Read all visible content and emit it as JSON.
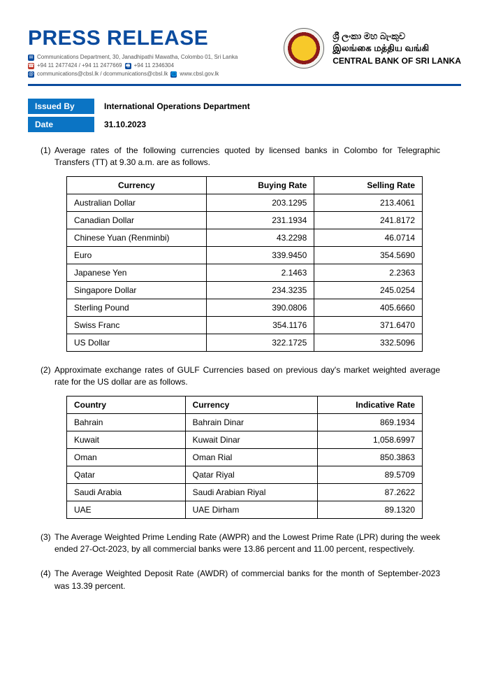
{
  "header": {
    "title": "PRESS RELEASE",
    "address": "Communications Department, 30, Janadhipathi Mawatha, Colombo 01, Sri Lanka",
    "phone": "+94 11 2477424 / +94 11 2477669",
    "fax": "+94 11 2346304",
    "email": "communications@cbsl.lk / dcommunications@cbsl.lk",
    "web": "www.cbsl.gov.lk",
    "bank_si": "ශ්‍රී ලංකා මහ බැංකුව",
    "bank_ta": "இலங்கை மத்திய வங்கி",
    "bank_en": "CENTRAL BANK OF SRI LANKA"
  },
  "meta": {
    "issued_by_label": "Issued By",
    "issued_by": "International Operations Department",
    "date_label": "Date",
    "date": "31.10.2023"
  },
  "section1": {
    "num": "(1)",
    "text": "Average rates of the following currencies quoted by licensed banks in Colombo for Telegraphic Transfers (TT) at 9.30 a.m. are as follows.",
    "columns": [
      "Currency",
      "Buying Rate",
      "Selling Rate"
    ],
    "rows": [
      [
        "Australian Dollar",
        "203.1295",
        "213.4061"
      ],
      [
        "Canadian Dollar",
        "231.1934",
        "241.8172"
      ],
      [
        "Chinese Yuan (Renminbi)",
        "43.2298",
        "46.0714"
      ],
      [
        "Euro",
        "339.9450",
        "354.5690"
      ],
      [
        "Japanese Yen",
        "2.1463",
        "2.2363"
      ],
      [
        "Singapore Dollar",
        "234.3235",
        "245.0254"
      ],
      [
        "Sterling Pound",
        "390.0806",
        "405.6660"
      ],
      [
        "Swiss Franc",
        "354.1176",
        "371.6470"
      ],
      [
        "US Dollar",
        "322.1725",
        "332.5096"
      ]
    ]
  },
  "section2": {
    "num": "(2)",
    "text": "Approximate exchange rates of GULF Currencies based on previous day's market weighted average rate for the US dollar are as follows.",
    "columns": [
      "Country",
      "Currency",
      "Indicative Rate"
    ],
    "rows": [
      [
        "Bahrain",
        "Bahrain Dinar",
        "869.1934"
      ],
      [
        "Kuwait",
        "Kuwait Dinar",
        "1,058.6997"
      ],
      [
        "Oman",
        "Oman Rial",
        "850.3863"
      ],
      [
        "Qatar",
        "Qatar Riyal",
        "89.5709"
      ],
      [
        "Saudi Arabia",
        "Saudi Arabian Riyal",
        "87.2622"
      ],
      [
        "UAE",
        "UAE Dirham",
        "89.1320"
      ]
    ]
  },
  "section3": {
    "num": "(3)",
    "text": "The Average Weighted Prime Lending Rate (AWPR) and the Lowest Prime Rate (LPR) during the week ended 27-Oct-2023, by all commercial banks were 13.86 percent and 11.00 percent, respectively."
  },
  "section4": {
    "num": "(4)",
    "text": "The Average Weighted Deposit Rate (AWDR) of commercial banks for the month of September-2023 was 13.39 percent."
  },
  "style": {
    "brand_color": "#0a4b9e",
    "label_bg": "#0b74c4",
    "text_color": "#000000",
    "table_border": "#000000",
    "font_body_pt": 12,
    "font_title_pt": 30
  }
}
